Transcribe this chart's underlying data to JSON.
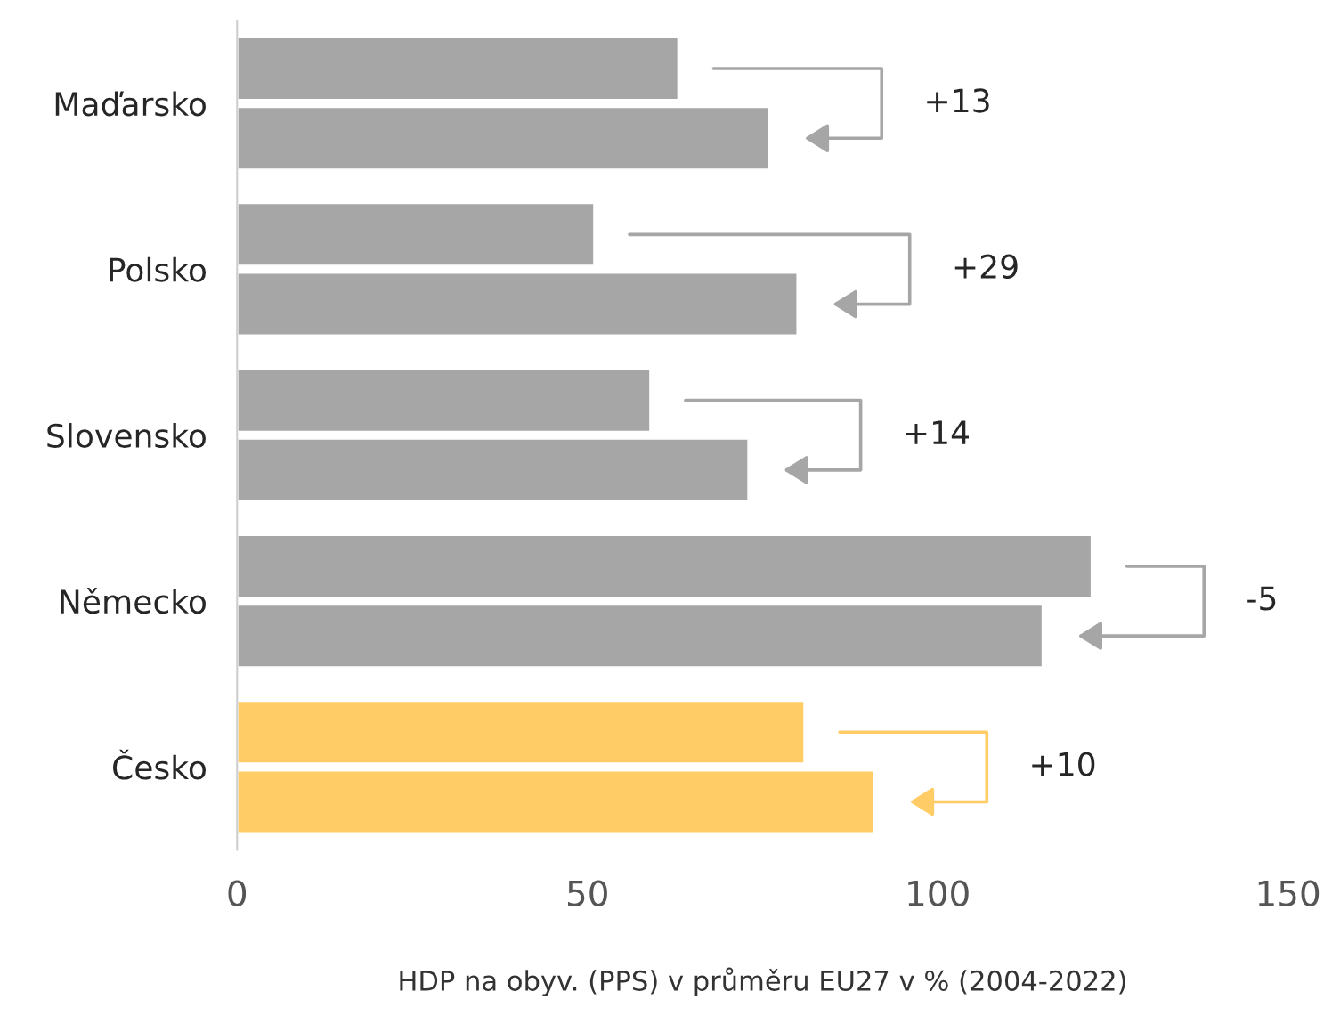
{
  "chart_data": {
    "type": "bar",
    "orientation": "horizontal",
    "xlabel": "HDP na obyv. (PPS) v průměru EU27 v % (2004-2022)",
    "categories": [
      "Maďarsko",
      "Polsko",
      "Slovensko",
      "Německo",
      "Česko"
    ],
    "series": [
      {
        "colors": [
          "#a6a6a6",
          "#a6a6a6",
          "#a6a6a6",
          "#a6a6a6",
          "#ffcc66"
        ],
        "values": [
          63,
          51,
          59,
          122,
          81
        ]
      },
      {
        "colors": [
          "#a6a6a6",
          "#a6a6a6",
          "#a6a6a6",
          "#a6a6a6",
          "#ffcc66"
        ],
        "values": [
          76,
          80,
          73,
          115,
          91
        ]
      }
    ],
    "xlim": [
      0,
      150
    ],
    "xticks": [
      0,
      50,
      100,
      150
    ],
    "annotations": [
      "+13",
      "+29",
      "+14",
      "-5",
      "+10"
    ]
  }
}
